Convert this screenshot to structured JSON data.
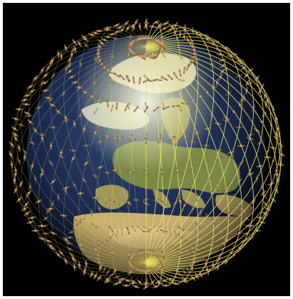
{
  "scene": {
    "subject": "satellite-constellation-globe",
    "background_color": "#000000",
    "frame_color": "#ffffff",
    "orbit_color": "#e8e060",
    "satellite_body_color": "#c8a070",
    "satellite_panel_color": "#8a6a40",
    "land_color": "#b8a060",
    "ocean_color": "#1a2a50",
    "ice_color": "#f0f0d8",
    "orbit_plane_count": 24,
    "satellites_per_plane": 26
  }
}
